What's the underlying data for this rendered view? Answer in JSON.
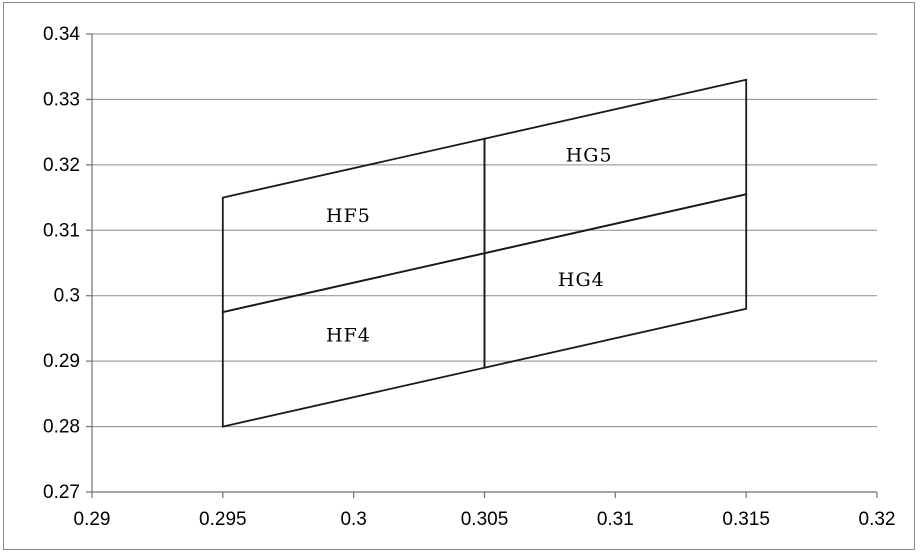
{
  "chart_data": {
    "type": "scatter",
    "title": "",
    "xlabel": "",
    "ylabel": "",
    "xlim": [
      0.29,
      0.32
    ],
    "ylim": [
      0.27,
      0.34
    ],
    "grid": "horizontal",
    "x_ticks": [
      "0.29",
      "0.295",
      "0.3",
      "0.305",
      "0.31",
      "0.315",
      "0.32"
    ],
    "y_ticks": [
      "0.27",
      "0.28",
      "0.29",
      "0.3",
      "0.31",
      "0.32",
      "0.33",
      "0.34"
    ],
    "regions": [
      {
        "name": "HF5",
        "points": [
          [
            0.295,
            0.315
          ],
          [
            0.305,
            0.324
          ],
          [
            0.305,
            0.3065
          ],
          [
            0.295,
            0.2975
          ]
        ]
      },
      {
        "name": "HG5",
        "points": [
          [
            0.305,
            0.324
          ],
          [
            0.315,
            0.333
          ],
          [
            0.315,
            0.3155
          ],
          [
            0.305,
            0.3065
          ]
        ]
      },
      {
        "name": "HF4",
        "points": [
          [
            0.295,
            0.2975
          ],
          [
            0.305,
            0.3065
          ],
          [
            0.305,
            0.289
          ],
          [
            0.295,
            0.28
          ]
        ]
      },
      {
        "name": "HG4",
        "points": [
          [
            0.305,
            0.3065
          ],
          [
            0.315,
            0.3155
          ],
          [
            0.315,
            0.298
          ],
          [
            0.305,
            0.289
          ]
        ]
      }
    ],
    "region_labels": [
      {
        "text": "HF5",
        "x": 0.2998,
        "y": 0.3113
      },
      {
        "text": "HG5",
        "x": 0.309,
        "y": 0.3205
      },
      {
        "text": "HF4",
        "x": 0.2998,
        "y": 0.293
      },
      {
        "text": "HG4",
        "x": 0.3087,
        "y": 0.3015
      }
    ]
  }
}
